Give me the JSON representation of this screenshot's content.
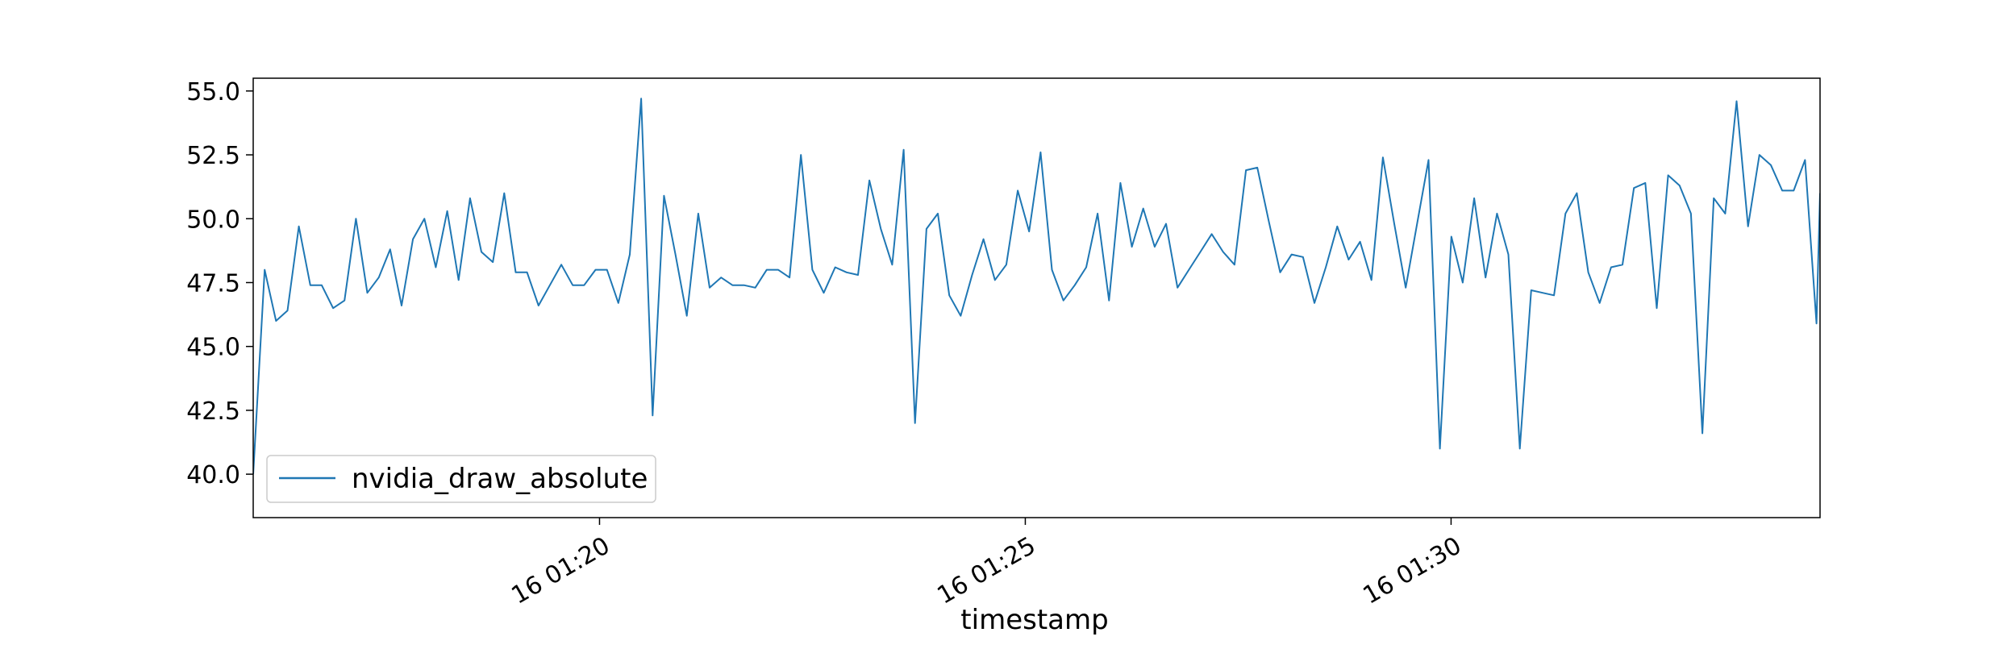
{
  "chart_data": {
    "type": "line",
    "title": "",
    "xlabel": "timestamp",
    "ylabel": "",
    "x_unit": "minutes after 16 01:15",
    "xlim": [
      0.0,
      18.4
    ],
    "ylim": [
      38.3,
      55.5
    ],
    "x_ticks": [
      {
        "value": 4.067,
        "label": "16 01:20"
      },
      {
        "value": 9.067,
        "label": "16 01:25"
      },
      {
        "value": 14.067,
        "label": "16 01:30"
      }
    ],
    "y_ticks": [
      {
        "value": 40.0,
        "label": "40.0"
      },
      {
        "value": 42.5,
        "label": "42.5"
      },
      {
        "value": 45.0,
        "label": "45.0"
      },
      {
        "value": 47.5,
        "label": "47.5"
      },
      {
        "value": 50.0,
        "label": "50.0"
      },
      {
        "value": 52.5,
        "label": "52.5"
      },
      {
        "value": 55.0,
        "label": "55.0"
      }
    ],
    "grid": false,
    "legend_position": "lower-left",
    "series": [
      {
        "name": "nvidia_draw_absolute",
        "color": "#1f77b4",
        "x": [
          0.0,
          0.134,
          0.268,
          0.402,
          0.536,
          0.67,
          0.804,
          0.938,
          1.072,
          1.206,
          1.34,
          1.474,
          1.608,
          1.742,
          1.876,
          2.01,
          2.144,
          2.278,
          2.412,
          2.546,
          2.68,
          2.814,
          2.948,
          3.082,
          3.216,
          3.35,
          3.484,
          3.618,
          3.752,
          3.886,
          4.02,
          4.154,
          4.288,
          4.422,
          4.556,
          4.69,
          4.824,
          4.958,
          5.092,
          5.226,
          5.36,
          5.494,
          5.628,
          5.762,
          5.896,
          6.03,
          6.164,
          6.298,
          6.432,
          6.566,
          6.7,
          6.834,
          6.968,
          7.102,
          7.236,
          7.37,
          7.504,
          7.638,
          7.772,
          7.906,
          8.04,
          8.174,
          8.308,
          8.442,
          8.576,
          8.71,
          8.844,
          8.978,
          9.112,
          9.246,
          9.38,
          9.514,
          9.648,
          9.782,
          9.916,
          10.05,
          10.184,
          10.318,
          10.452,
          10.586,
          10.72,
          10.854,
          10.988,
          11.122,
          11.256,
          11.39,
          11.524,
          11.658,
          11.792,
          11.926,
          12.06,
          12.194,
          12.328,
          12.462,
          12.596,
          12.73,
          12.864,
          12.998,
          13.132,
          13.266,
          13.4,
          13.534,
          13.668,
          13.802,
          13.936,
          14.07,
          14.204,
          14.338,
          14.472,
          14.606,
          14.74,
          14.874,
          15.008,
          15.142,
          15.276,
          15.41,
          15.544,
          15.678,
          15.812,
          15.946,
          16.08,
          16.214,
          16.348,
          16.482,
          16.616,
          16.75,
          16.884,
          17.018,
          17.152,
          17.286,
          17.42,
          17.554,
          17.688,
          17.822,
          17.956,
          18.09,
          18.224,
          18.358,
          18.4
        ],
        "y": [
          40.0,
          48.0,
          46.0,
          46.4,
          49.7,
          47.4,
          47.4,
          46.5,
          46.8,
          50.0,
          47.1,
          47.7,
          48.8,
          46.6,
          49.2,
          50.0,
          48.1,
          50.3,
          47.6,
          50.8,
          48.7,
          48.3,
          51.0,
          47.9,
          47.9,
          46.6,
          47.4,
          48.2,
          47.4,
          47.4,
          48.0,
          48.0,
          46.7,
          48.6,
          54.7,
          42.3,
          50.9,
          48.6,
          46.2,
          50.2,
          47.3,
          47.7,
          47.4,
          47.4,
          47.3,
          48.0,
          48.0,
          47.7,
          52.5,
          48.0,
          47.1,
          48.1,
          47.9,
          47.8,
          51.5,
          49.6,
          48.2,
          52.7,
          42.0,
          49.6,
          50.2,
          47.0,
          46.2,
          47.8,
          49.2,
          47.6,
          48.2,
          51.1,
          49.5,
          52.6,
          48.0,
          46.8,
          47.4,
          48.1,
          50.2,
          46.8,
          51.4,
          48.9,
          50.4,
          48.9,
          49.8,
          47.3,
          48.0,
          48.7,
          49.4,
          48.7,
          48.2,
          51.9,
          52.0,
          49.9,
          47.9,
          48.6,
          48.5,
          46.7,
          48.1,
          49.7,
          48.4,
          49.1,
          47.6,
          52.4,
          49.8,
          47.3,
          49.8,
          52.3,
          41.0,
          49.3,
          47.5,
          50.8,
          47.7,
          50.2,
          48.6,
          41.0,
          47.2,
          47.1,
          47.0,
          50.2,
          51.0,
          47.9,
          46.7,
          48.1,
          48.2,
          51.2,
          51.4,
          46.5,
          51.7,
          51.3,
          50.2,
          41.6,
          50.8,
          50.2,
          54.6,
          49.7,
          52.5,
          52.1,
          51.1,
          51.1,
          52.3,
          45.9,
          51.0
        ]
      }
    ],
    "legend": [
      "nvidia_draw_absolute"
    ]
  }
}
